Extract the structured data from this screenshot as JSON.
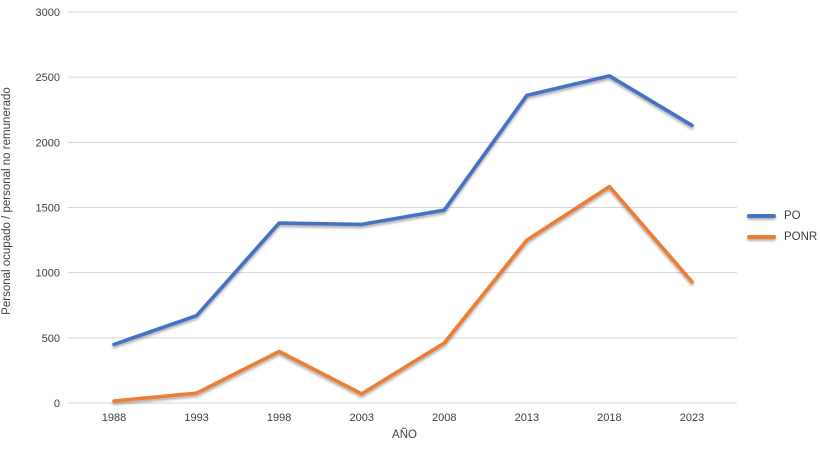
{
  "chart_data": {
    "type": "line",
    "title": "",
    "xlabel": "AÑO",
    "ylabel": "Personal ocupado / personal no remunerado",
    "categories": [
      "1988",
      "1993",
      "1998",
      "2003",
      "2008",
      "2013",
      "2018",
      "2023"
    ],
    "series": [
      {
        "name": "PO",
        "color": "#4472C4",
        "values": [
          450,
          670,
          1380,
          1370,
          1480,
          2360,
          2510,
          2130
        ]
      },
      {
        "name": "PONR",
        "color": "#ED7D31",
        "values": [
          15,
          75,
          395,
          70,
          460,
          1250,
          1660,
          930
        ]
      }
    ],
    "ylim": [
      0,
      3000
    ],
    "ytick_step": 500,
    "yticks": [
      "0",
      "500",
      "1000",
      "1500",
      "2000",
      "2500",
      "3000"
    ],
    "grid": "horizontal",
    "gridline_color": "#D6D6D6",
    "tick_label_color": "#404040",
    "legend_position": "right"
  }
}
